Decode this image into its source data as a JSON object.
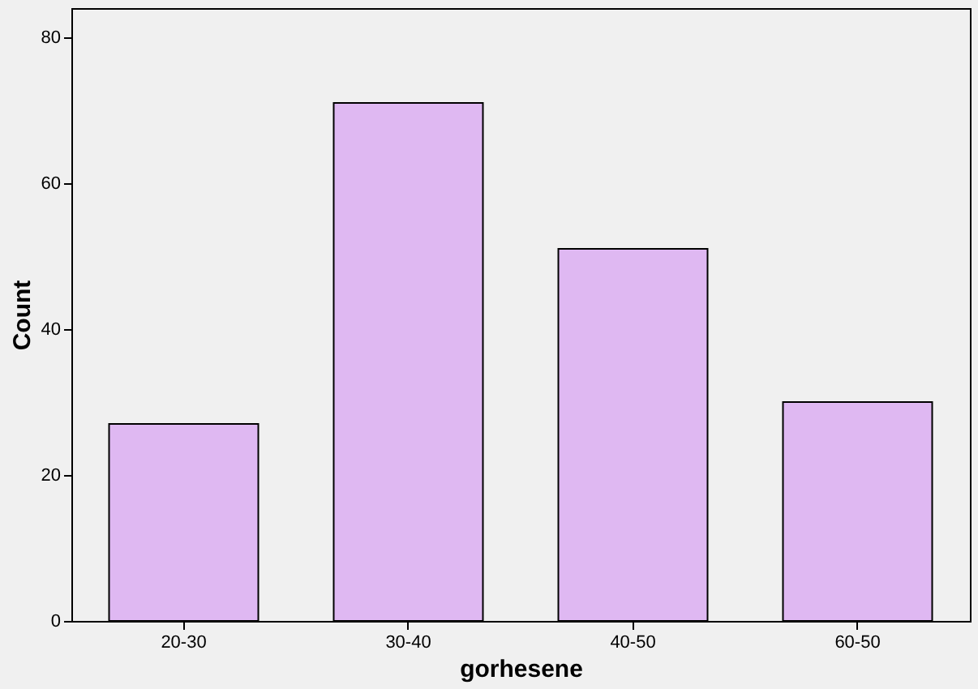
{
  "chart_data": {
    "type": "bar",
    "xlabel": "gorhesene",
    "ylabel": "Count",
    "categories": [
      "20-30",
      "30-40",
      "40-50",
      "60-50"
    ],
    "values": [
      27,
      71,
      51,
      30
    ],
    "color": "#dfb8f2",
    "ylim": [
      0,
      84
    ],
    "yticks": [
      0,
      20,
      40,
      60,
      80
    ],
    "grid": false
  }
}
